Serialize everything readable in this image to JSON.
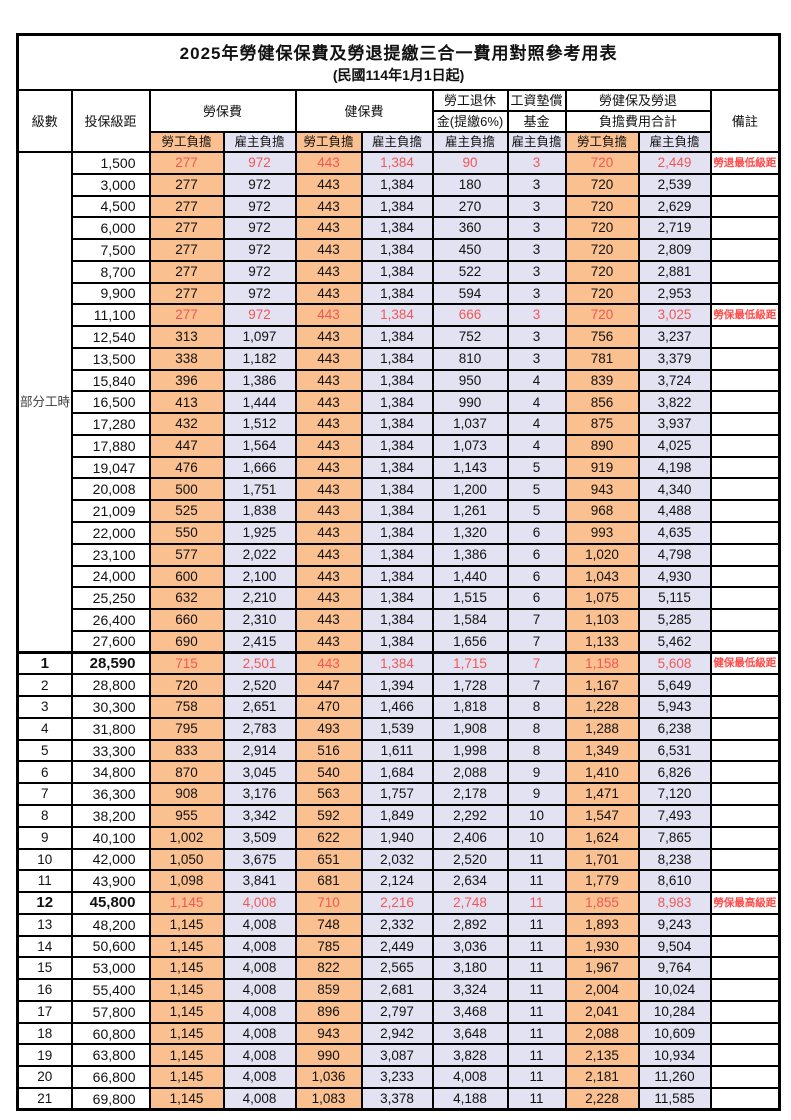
{
  "title": "2025年勞健保保費及勞退提繳三合一費用對照參考用表",
  "subtitle": "(民國114年1月1日起)",
  "colors": {
    "worker_column_bg": "#FAC090",
    "employer_column_bg": "#E3E2F2",
    "highlight_text": "#F25757",
    "border": "#000000"
  },
  "header": {
    "level": "級數",
    "bracket": "投保級距",
    "labor_insurance": "勞保費",
    "health_insurance": "健保費",
    "pension_line1": "勞工退休",
    "pension_line2": "金(提繳6%)",
    "wage_arrears_line1": "工資墊償",
    "wage_arrears_line2": "基金",
    "total_line1": "勞健保及勞退",
    "total_line2": "負擔費用合計",
    "remark": "備註",
    "worker_share": "勞工負擔",
    "employer_share": "雇主負擔"
  },
  "part_time_label": "部分工時",
  "rows": [
    {
      "bracket": "1,500",
      "v": [
        "277",
        "972",
        "443",
        "1,384",
        "90",
        "3",
        "720",
        "2,449"
      ],
      "remark": "勞退最低級距",
      "red": true,
      "bold": false
    },
    {
      "bracket": "3,000",
      "v": [
        "277",
        "972",
        "443",
        "1,384",
        "180",
        "3",
        "720",
        "2,539"
      ],
      "remark": "",
      "red": false,
      "bold": false
    },
    {
      "bracket": "4,500",
      "v": [
        "277",
        "972",
        "443",
        "1,384",
        "270",
        "3",
        "720",
        "2,629"
      ],
      "remark": "",
      "red": false,
      "bold": false
    },
    {
      "bracket": "6,000",
      "v": [
        "277",
        "972",
        "443",
        "1,384",
        "360",
        "3",
        "720",
        "2,719"
      ],
      "remark": "",
      "red": false,
      "bold": false
    },
    {
      "bracket": "7,500",
      "v": [
        "277",
        "972",
        "443",
        "1,384",
        "450",
        "3",
        "720",
        "2,809"
      ],
      "remark": "",
      "red": false,
      "bold": false
    },
    {
      "bracket": "8,700",
      "v": [
        "277",
        "972",
        "443",
        "1,384",
        "522",
        "3",
        "720",
        "2,881"
      ],
      "remark": "",
      "red": false,
      "bold": false
    },
    {
      "bracket": "9,900",
      "v": [
        "277",
        "972",
        "443",
        "1,384",
        "594",
        "3",
        "720",
        "2,953"
      ],
      "remark": "",
      "red": false,
      "bold": false
    },
    {
      "bracket": "11,100",
      "v": [
        "277",
        "972",
        "443",
        "1,384",
        "666",
        "3",
        "720",
        "3,025"
      ],
      "remark": "勞保最低級距",
      "red": true,
      "bold": false
    },
    {
      "bracket": "12,540",
      "v": [
        "313",
        "1,097",
        "443",
        "1,384",
        "752",
        "3",
        "756",
        "3,237"
      ],
      "remark": "",
      "red": false,
      "bold": false
    },
    {
      "bracket": "13,500",
      "v": [
        "338",
        "1,182",
        "443",
        "1,384",
        "810",
        "3",
        "781",
        "3,379"
      ],
      "remark": "",
      "red": false,
      "bold": false
    },
    {
      "bracket": "15,840",
      "v": [
        "396",
        "1,386",
        "443",
        "1,384",
        "950",
        "4",
        "839",
        "3,724"
      ],
      "remark": "",
      "red": false,
      "bold": false
    },
    {
      "bracket": "16,500",
      "v": [
        "413",
        "1,444",
        "443",
        "1,384",
        "990",
        "4",
        "856",
        "3,822"
      ],
      "remark": "",
      "red": false,
      "bold": false
    },
    {
      "bracket": "17,280",
      "v": [
        "432",
        "1,512",
        "443",
        "1,384",
        "1,037",
        "4",
        "875",
        "3,937"
      ],
      "remark": "",
      "red": false,
      "bold": false
    },
    {
      "bracket": "17,880",
      "v": [
        "447",
        "1,564",
        "443",
        "1,384",
        "1,073",
        "4",
        "890",
        "4,025"
      ],
      "remark": "",
      "red": false,
      "bold": false
    },
    {
      "bracket": "19,047",
      "v": [
        "476",
        "1,666",
        "443",
        "1,384",
        "1,143",
        "5",
        "919",
        "4,198"
      ],
      "remark": "",
      "red": false,
      "bold": false
    },
    {
      "bracket": "20,008",
      "v": [
        "500",
        "1,751",
        "443",
        "1,384",
        "1,200",
        "5",
        "943",
        "4,340"
      ],
      "remark": "",
      "red": false,
      "bold": false
    },
    {
      "bracket": "21,009",
      "v": [
        "525",
        "1,838",
        "443",
        "1,384",
        "1,261",
        "5",
        "968",
        "4,488"
      ],
      "remark": "",
      "red": false,
      "bold": false
    },
    {
      "bracket": "22,000",
      "v": [
        "550",
        "1,925",
        "443",
        "1,384",
        "1,320",
        "6",
        "993",
        "4,635"
      ],
      "remark": "",
      "red": false,
      "bold": false
    },
    {
      "bracket": "23,100",
      "v": [
        "577",
        "2,022",
        "443",
        "1,384",
        "1,386",
        "6",
        "1,020",
        "4,798"
      ],
      "remark": "",
      "red": false,
      "bold": false
    },
    {
      "bracket": "24,000",
      "v": [
        "600",
        "2,100",
        "443",
        "1,384",
        "1,440",
        "6",
        "1,043",
        "4,930"
      ],
      "remark": "",
      "red": false,
      "bold": false
    },
    {
      "bracket": "25,250",
      "v": [
        "632",
        "2,210",
        "443",
        "1,384",
        "1,515",
        "6",
        "1,075",
        "5,115"
      ],
      "remark": "",
      "red": false,
      "bold": false
    },
    {
      "bracket": "26,400",
      "v": [
        "660",
        "2,310",
        "443",
        "1,384",
        "1,584",
        "7",
        "1,103",
        "5,285"
      ],
      "remark": "",
      "red": false,
      "bold": false
    },
    {
      "bracket": "27,600",
      "v": [
        "690",
        "2,415",
        "443",
        "1,384",
        "1,656",
        "7",
        "1,133",
        "5,462"
      ],
      "remark": "",
      "red": false,
      "bold": false
    },
    {
      "level": "1",
      "bracket": "28,590",
      "v": [
        "715",
        "2,501",
        "443",
        "1,384",
        "1,715",
        "7",
        "1,158",
        "5,608"
      ],
      "remark": "健保最低級距",
      "red": true,
      "bold": true
    },
    {
      "level": "2",
      "bracket": "28,800",
      "v": [
        "720",
        "2,520",
        "447",
        "1,394",
        "1,728",
        "7",
        "1,167",
        "5,649"
      ],
      "remark": "",
      "red": false,
      "bold": false
    },
    {
      "level": "3",
      "bracket": "30,300",
      "v": [
        "758",
        "2,651",
        "470",
        "1,466",
        "1,818",
        "8",
        "1,228",
        "5,943"
      ],
      "remark": "",
      "red": false,
      "bold": false
    },
    {
      "level": "4",
      "bracket": "31,800",
      "v": [
        "795",
        "2,783",
        "493",
        "1,539",
        "1,908",
        "8",
        "1,288",
        "6,238"
      ],
      "remark": "",
      "red": false,
      "bold": false
    },
    {
      "level": "5",
      "bracket": "33,300",
      "v": [
        "833",
        "2,914",
        "516",
        "1,611",
        "1,998",
        "8",
        "1,349",
        "6,531"
      ],
      "remark": "",
      "red": false,
      "bold": false
    },
    {
      "level": "6",
      "bracket": "34,800",
      "v": [
        "870",
        "3,045",
        "540",
        "1,684",
        "2,088",
        "9",
        "1,410",
        "6,826"
      ],
      "remark": "",
      "red": false,
      "bold": false
    },
    {
      "level": "7",
      "bracket": "36,300",
      "v": [
        "908",
        "3,176",
        "563",
        "1,757",
        "2,178",
        "9",
        "1,471",
        "7,120"
      ],
      "remark": "",
      "red": false,
      "bold": false
    },
    {
      "level": "8",
      "bracket": "38,200",
      "v": [
        "955",
        "3,342",
        "592",
        "1,849",
        "2,292",
        "10",
        "1,547",
        "7,493"
      ],
      "remark": "",
      "red": false,
      "bold": false
    },
    {
      "level": "9",
      "bracket": "40,100",
      "v": [
        "1,002",
        "3,509",
        "622",
        "1,940",
        "2,406",
        "10",
        "1,624",
        "7,865"
      ],
      "remark": "",
      "red": false,
      "bold": false
    },
    {
      "level": "10",
      "bracket": "42,000",
      "v": [
        "1,050",
        "3,675",
        "651",
        "2,032",
        "2,520",
        "11",
        "1,701",
        "8,238"
      ],
      "remark": "",
      "red": false,
      "bold": false
    },
    {
      "level": "11",
      "bracket": "43,900",
      "v": [
        "1,098",
        "3,841",
        "681",
        "2,124",
        "2,634",
        "11",
        "1,779",
        "8,610"
      ],
      "remark": "",
      "red": false,
      "bold": false
    },
    {
      "level": "12",
      "bracket": "45,800",
      "v": [
        "1,145",
        "4,008",
        "710",
        "2,216",
        "2,748",
        "11",
        "1,855",
        "8,983"
      ],
      "remark": "勞保最高級距",
      "red": true,
      "bold": true
    },
    {
      "level": "13",
      "bracket": "48,200",
      "v": [
        "1,145",
        "4,008",
        "748",
        "2,332",
        "2,892",
        "11",
        "1,893",
        "9,243"
      ],
      "remark": "",
      "red": false,
      "bold": false
    },
    {
      "level": "14",
      "bracket": "50,600",
      "v": [
        "1,145",
        "4,008",
        "785",
        "2,449",
        "3,036",
        "11",
        "1,930",
        "9,504"
      ],
      "remark": "",
      "red": false,
      "bold": false
    },
    {
      "level": "15",
      "bracket": "53,000",
      "v": [
        "1,145",
        "4,008",
        "822",
        "2,565",
        "3,180",
        "11",
        "1,967",
        "9,764"
      ],
      "remark": "",
      "red": false,
      "bold": false
    },
    {
      "level": "16",
      "bracket": "55,400",
      "v": [
        "1,145",
        "4,008",
        "859",
        "2,681",
        "3,324",
        "11",
        "2,004",
        "10,024"
      ],
      "remark": "",
      "red": false,
      "bold": false
    },
    {
      "level": "17",
      "bracket": "57,800",
      "v": [
        "1,145",
        "4,008",
        "896",
        "2,797",
        "3,468",
        "11",
        "2,041",
        "10,284"
      ],
      "remark": "",
      "red": false,
      "bold": false
    },
    {
      "level": "18",
      "bracket": "60,800",
      "v": [
        "1,145",
        "4,008",
        "943",
        "2,942",
        "3,648",
        "11",
        "2,088",
        "10,609"
      ],
      "remark": "",
      "red": false,
      "bold": false
    },
    {
      "level": "19",
      "bracket": "63,800",
      "v": [
        "1,145",
        "4,008",
        "990",
        "3,087",
        "3,828",
        "11",
        "2,135",
        "10,934"
      ],
      "remark": "",
      "red": false,
      "bold": false
    },
    {
      "level": "20",
      "bracket": "66,800",
      "v": [
        "1,145",
        "4,008",
        "1,036",
        "3,233",
        "4,008",
        "11",
        "2,181",
        "11,260"
      ],
      "remark": "",
      "red": false,
      "bold": false
    },
    {
      "level": "21",
      "bracket": "69,800",
      "v": [
        "1,145",
        "4,008",
        "1,083",
        "3,378",
        "4,188",
        "11",
        "2,228",
        "11,585"
      ],
      "remark": "",
      "red": false,
      "bold": false
    }
  ]
}
